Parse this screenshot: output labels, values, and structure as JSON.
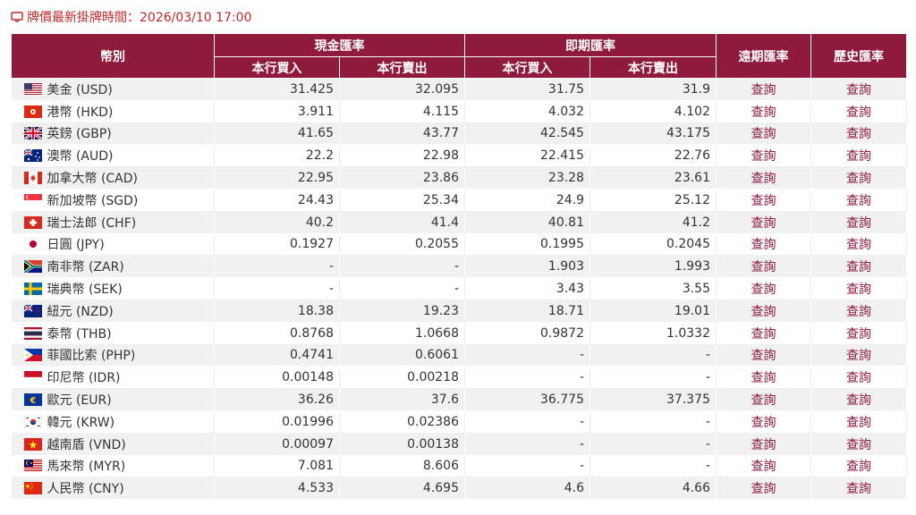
{
  "notice": {
    "text": "牌價最新掛牌時間：2026/03/10 17:00",
    "icon": "monitor-icon"
  },
  "colors": {
    "header_bg": "#8f1a3c",
    "notice_text": "#c0282d",
    "stripe": "#f1f1f1"
  },
  "table": {
    "headers": {
      "currency": "幣別",
      "cash": "現金匯率",
      "spot": "即期匯率",
      "forward": "遠期匯率",
      "history": "歷史匯率",
      "buy": "本行買入",
      "sell": "本行賣出"
    },
    "rows": [
      {
        "flag": "us",
        "name": "美金 (USD)",
        "cash_buy": "31.425",
        "cash_sell": "32.095",
        "spot_buy": "31.75",
        "spot_sell": "31.9",
        "forward": "查詢",
        "history": "查詢"
      },
      {
        "flag": "hk",
        "name": "港幣 (HKD)",
        "cash_buy": "3.911",
        "cash_sell": "4.115",
        "spot_buy": "4.032",
        "spot_sell": "4.102",
        "forward": "查詢",
        "history": "查詢"
      },
      {
        "flag": "gb",
        "name": "英鎊 (GBP)",
        "cash_buy": "41.65",
        "cash_sell": "43.77",
        "spot_buy": "42.545",
        "spot_sell": "43.175",
        "forward": "查詢",
        "history": "查詢"
      },
      {
        "flag": "au",
        "name": "澳幣 (AUD)",
        "cash_buy": "22.2",
        "cash_sell": "22.98",
        "spot_buy": "22.415",
        "spot_sell": "22.76",
        "forward": "查詢",
        "history": "查詢"
      },
      {
        "flag": "ca",
        "name": "加拿大幣 (CAD)",
        "cash_buy": "22.95",
        "cash_sell": "23.86",
        "spot_buy": "23.28",
        "spot_sell": "23.61",
        "forward": "查詢",
        "history": "查詢"
      },
      {
        "flag": "sg",
        "name": "新加坡幣 (SGD)",
        "cash_buy": "24.43",
        "cash_sell": "25.34",
        "spot_buy": "24.9",
        "spot_sell": "25.12",
        "forward": "查詢",
        "history": "查詢"
      },
      {
        "flag": "ch",
        "name": "瑞士法郎 (CHF)",
        "cash_buy": "40.2",
        "cash_sell": "41.4",
        "spot_buy": "40.81",
        "spot_sell": "41.2",
        "forward": "查詢",
        "history": "查詢"
      },
      {
        "flag": "jp",
        "name": "日圓 (JPY)",
        "cash_buy": "0.1927",
        "cash_sell": "0.2055",
        "spot_buy": "0.1995",
        "spot_sell": "0.2045",
        "forward": "查詢",
        "history": "查詢"
      },
      {
        "flag": "za",
        "name": "南非幣 (ZAR)",
        "cash_buy": "-",
        "cash_sell": "-",
        "spot_buy": "1.903",
        "spot_sell": "1.993",
        "forward": "查詢",
        "history": "查詢"
      },
      {
        "flag": "se",
        "name": "瑞典幣 (SEK)",
        "cash_buy": "-",
        "cash_sell": "-",
        "spot_buy": "3.43",
        "spot_sell": "3.55",
        "forward": "查詢",
        "history": "查詢"
      },
      {
        "flag": "nz",
        "name": "紐元 (NZD)",
        "cash_buy": "18.38",
        "cash_sell": "19.23",
        "spot_buy": "18.71",
        "spot_sell": "19.01",
        "forward": "查詢",
        "history": "查詢"
      },
      {
        "flag": "th",
        "name": "泰幣 (THB)",
        "cash_buy": "0.8768",
        "cash_sell": "1.0668",
        "spot_buy": "0.9872",
        "spot_sell": "1.0332",
        "forward": "查詢",
        "history": "查詢"
      },
      {
        "flag": "ph",
        "name": "菲國比索 (PHP)",
        "cash_buy": "0.4741",
        "cash_sell": "0.6061",
        "spot_buy": "-",
        "spot_sell": "-",
        "forward": "查詢",
        "history": "查詢"
      },
      {
        "flag": "id",
        "name": "印尼幣 (IDR)",
        "cash_buy": "0.00148",
        "cash_sell": "0.00218",
        "spot_buy": "-",
        "spot_sell": "-",
        "forward": "查詢",
        "history": "查詢"
      },
      {
        "flag": "eu",
        "name": "歐元 (EUR)",
        "cash_buy": "36.26",
        "cash_sell": "37.6",
        "spot_buy": "36.775",
        "spot_sell": "37.375",
        "forward": "查詢",
        "history": "查詢"
      },
      {
        "flag": "kr",
        "name": "韓元 (KRW)",
        "cash_buy": "0.01996",
        "cash_sell": "0.02386",
        "spot_buy": "-",
        "spot_sell": "-",
        "forward": "查詢",
        "history": "查詢"
      },
      {
        "flag": "vn",
        "name": "越南盾 (VND)",
        "cash_buy": "0.00097",
        "cash_sell": "0.00138",
        "spot_buy": "-",
        "spot_sell": "-",
        "forward": "查詢",
        "history": "查詢"
      },
      {
        "flag": "my",
        "name": "馬來幣 (MYR)",
        "cash_buy": "7.081",
        "cash_sell": "8.606",
        "spot_buy": "-",
        "spot_sell": "-",
        "forward": "查詢",
        "history": "查詢"
      },
      {
        "flag": "cn",
        "name": "人民幣 (CNY)",
        "cash_buy": "4.533",
        "cash_sell": "4.695",
        "spot_buy": "4.6",
        "spot_sell": "4.66",
        "forward": "查詢",
        "history": "查詢"
      }
    ]
  }
}
